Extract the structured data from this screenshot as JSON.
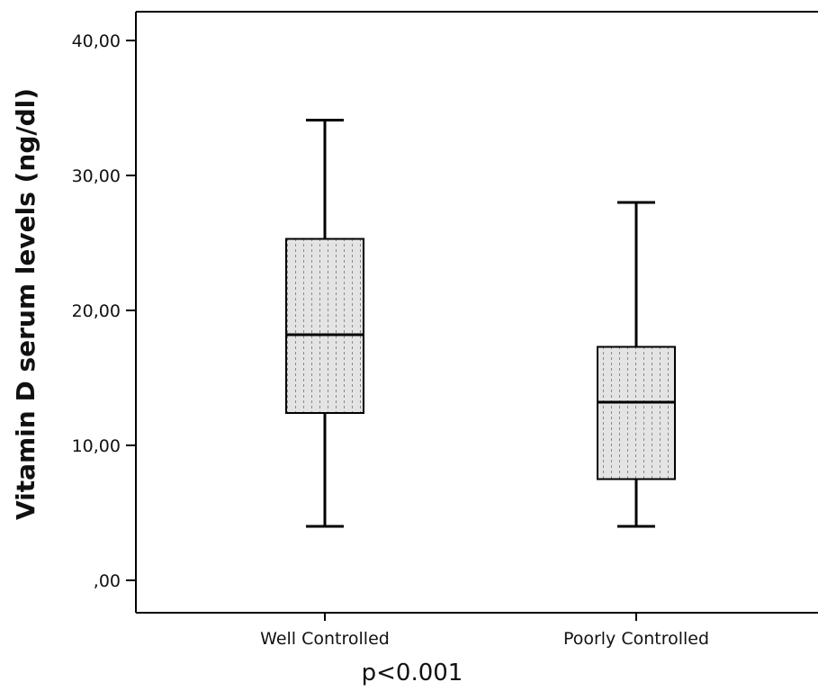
{
  "chart_data": {
    "type": "boxplot",
    "title": "",
    "xlabel": "",
    "ylabel": "Vitamin D serum levels (ng/dl)",
    "ylim": [
      0,
      42.5
    ],
    "y_ticks": [
      0,
      10,
      20,
      30,
      40
    ],
    "y_tick_labels": [
      ",00",
      "10,00",
      "20,00",
      "30,00",
      "40,00"
    ],
    "categories": [
      "Well Controlled",
      "Poorly Controlled"
    ],
    "boxes": [
      {
        "category": "Well Controlled",
        "min": 4.0,
        "q1": 12.4,
        "median": 18.2,
        "q3": 25.3,
        "max": 34.1
      },
      {
        "category": "Poorly Controlled",
        "min": 4.0,
        "q1": 7.5,
        "median": 13.2,
        "q3": 17.3,
        "max": 28.0
      }
    ],
    "annotation": "p<0.001",
    "grid": false,
    "box_fill": "#e4e4e4",
    "box_pattern": "dotted-vertical"
  }
}
